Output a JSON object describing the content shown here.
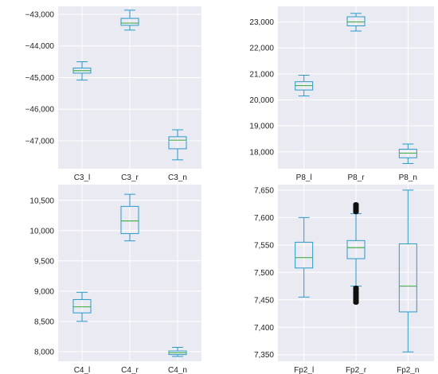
{
  "chart_data": [
    {
      "type": "boxplot",
      "categories": [
        "C3_l",
        "C3_r",
        "C3_n"
      ],
      "boxes": [
        {
          "name": "C3_l",
          "whisker_low": -45080,
          "q1": -44860,
          "median": -44780,
          "q3": -44700,
          "whisker_high": -44500
        },
        {
          "name": "C3_r",
          "whisker_low": -43500,
          "q1": -43350,
          "median": -43280,
          "q3": -43130,
          "whisker_high": -42870
        },
        {
          "name": "C3_n",
          "whisker_low": -47600,
          "q1": -47250,
          "median": -46980,
          "q3": -46870,
          "whisker_high": -46650
        }
      ],
      "ylim": [
        -47880,
        -42750
      ],
      "yticks": [
        -47000,
        -46000,
        -45000,
        -44000,
        -43000
      ],
      "ytick_labels": [
        "−47,000",
        "−46,000",
        "−45,000",
        "−44,000",
        "−43,000"
      ],
      "grid": true
    },
    {
      "type": "boxplot",
      "categories": [
        "P8_l",
        "P8_r",
        "P8_n"
      ],
      "boxes": [
        {
          "name": "P8_l",
          "whisker_low": 20150,
          "q1": 20380,
          "median": 20550,
          "q3": 20700,
          "whisker_high": 20950
        },
        {
          "name": "P8_r",
          "whisker_low": 22650,
          "q1": 22850,
          "median": 23000,
          "q3": 23200,
          "whisker_high": 23330
        },
        {
          "name": "P8_n",
          "whisker_low": 17550,
          "q1": 17770,
          "median": 17950,
          "q3": 18100,
          "whisker_high": 18300
        }
      ],
      "ylim": [
        17350,
        23600
      ],
      "yticks": [
        18000,
        19000,
        20000,
        21000,
        22000,
        23000
      ],
      "ytick_labels": [
        "18,000",
        "19,000",
        "20,000",
        "21,000",
        "22,000",
        "23,000"
      ],
      "grid": true
    },
    {
      "type": "boxplot",
      "categories": [
        "C4_l",
        "C4_r",
        "C4_n"
      ],
      "boxes": [
        {
          "name": "C4_l",
          "whisker_low": 8500,
          "q1": 8640,
          "median": 8740,
          "q3": 8860,
          "whisker_high": 8980
        },
        {
          "name": "C4_r",
          "whisker_low": 9830,
          "q1": 9950,
          "median": 10160,
          "q3": 10400,
          "whisker_high": 10600
        },
        {
          "name": "C4_n",
          "whisker_low": 7920,
          "q1": 7950,
          "median": 7980,
          "q3": 8010,
          "whisker_high": 8070
        }
      ],
      "ylim": [
        7840,
        10760
      ],
      "yticks": [
        8000,
        8500,
        9000,
        9500,
        10000,
        10500
      ],
      "ytick_labels": [
        "8,000",
        "8,500",
        "9,000",
        "9,500",
        "10,000",
        "10,500"
      ],
      "grid": true
    },
    {
      "type": "boxplot",
      "categories": [
        "Fp2_l",
        "Fp2_r",
        "Fp2_n"
      ],
      "boxes": [
        {
          "name": "Fp2_l",
          "whisker_low": 7455,
          "q1": 7508,
          "median": 7527,
          "q3": 7555,
          "whisker_high": 7600
        },
        {
          "name": "Fp2_r",
          "whisker_low": 7475,
          "q1": 7525,
          "median": 7545,
          "q3": 7558,
          "whisker_high": 7607,
          "outliers_low": [
            7445,
            7448,
            7451,
            7454,
            7457,
            7460,
            7463,
            7466,
            7469,
            7472
          ],
          "outliers_high": [
            7610,
            7613,
            7616,
            7619,
            7622,
            7624
          ]
        },
        {
          "name": "Fp2_n",
          "whisker_low": 7355,
          "q1": 7428,
          "median": 7475,
          "q3": 7552,
          "whisker_high": 7650
        }
      ],
      "ylim": [
        7338,
        7660
      ],
      "yticks": [
        7350,
        7400,
        7450,
        7500,
        7550,
        7600,
        7650
      ],
      "ytick_labels": [
        "7,350",
        "7,400",
        "7,450",
        "7,500",
        "7,550",
        "7,600",
        "7,650"
      ],
      "grid": true
    }
  ]
}
